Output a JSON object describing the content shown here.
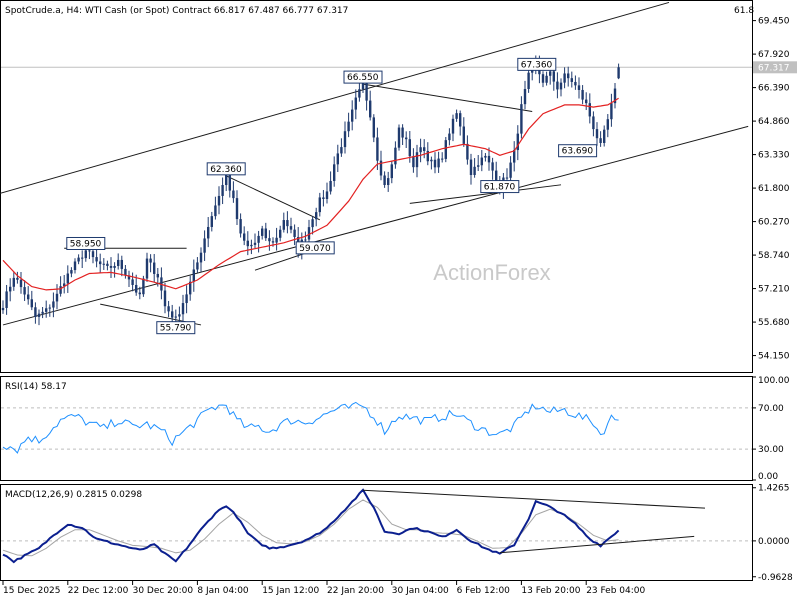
{
  "header": {
    "symbol": "SpotCrude.a, H4:  WTI Cash (or Spot) Contract  66.817 67.487 66.777 67.317",
    "right_value": "61.8"
  },
  "watermark": "ActionForex",
  "colors": {
    "candle": "#1f3a6e",
    "ma": "#e32222",
    "rsi": "#1e90ff",
    "macd_line": "#0b1f8f",
    "macd_signal": "#a5a5a5",
    "trendline": "#1a1a1a",
    "price_label_bg": "#c0c0c0"
  },
  "chart_data": [
    {
      "type": "candlestick",
      "name": "price",
      "symbol": "SpotCrude.a",
      "timeframe": "H4",
      "title": "WTI Cash (or Spot) Contract",
      "ohlc_current": {
        "open": 66.817,
        "high": 67.487,
        "low": 66.777,
        "close": 67.317
      },
      "ylim": [
        53.4,
        70.3
      ],
      "y_ticks": [
        "69.450",
        "67.920",
        "66.390",
        "64.860",
        "63.330",
        "61.800",
        "60.270",
        "58.740",
        "57.210",
        "55.680",
        "54.150"
      ],
      "last_price": "67.317",
      "x_ticks": [
        "15 Dec 2025",
        "22 Dec 12:00",
        "30 Dec 20:00",
        "8 Jan 04:00",
        "15 Jan 12:00",
        "22 Jan 20:00",
        "30 Jan 04:00",
        "6 Feb 12:00",
        "13 Feb 20:00",
        "23 Feb 04:00"
      ],
      "anchors": [
        [
          0,
          56.5
        ],
        [
          3,
          57.8
        ],
        [
          6,
          57.0
        ],
        [
          9,
          55.9
        ],
        [
          12,
          56.2
        ],
        [
          15,
          56.9
        ],
        [
          17,
          57.6
        ],
        [
          20,
          58.3
        ],
        [
          23,
          58.95
        ],
        [
          26,
          58.4
        ],
        [
          29,
          58.1
        ],
        [
          32,
          58.4
        ],
        [
          35,
          57.7
        ],
        [
          38,
          56.8
        ],
        [
          40,
          58.5
        ],
        [
          43,
          57.8
        ],
        [
          45,
          56.4
        ],
        [
          48,
          55.79
        ],
        [
          51,
          57.0
        ],
        [
          54,
          58.4
        ],
        [
          57,
          60.1
        ],
        [
          60,
          61.5
        ],
        [
          62,
          62.36
        ],
        [
          64,
          61.2
        ],
        [
          66,
          59.6
        ],
        [
          68,
          59.1
        ],
        [
          70,
          59.3
        ],
        [
          72,
          59.8
        ],
        [
          74,
          59.3
        ],
        [
          76,
          59.5
        ],
        [
          78,
          60.4
        ],
        [
          80,
          59.8
        ],
        [
          82,
          59.07
        ],
        [
          84,
          59.6
        ],
        [
          86,
          60.5
        ],
        [
          88,
          61.2
        ],
        [
          90,
          61.6
        ],
        [
          92,
          62.9
        ],
        [
          94,
          63.8
        ],
        [
          96,
          64.7
        ],
        [
          98,
          65.8
        ],
        [
          100,
          66.55
        ],
        [
          102,
          65.2
        ],
        [
          104,
          63.2
        ],
        [
          106,
          61.9
        ],
        [
          108,
          62.8
        ],
        [
          110,
          64.5
        ],
        [
          112,
          63.9
        ],
        [
          114,
          62.8
        ],
        [
          116,
          63.8
        ],
        [
          118,
          63.2
        ],
        [
          120,
          62.7
        ],
        [
          122,
          63.3
        ],
        [
          124,
          64.4
        ],
        [
          126,
          65.2
        ],
        [
          128,
          63.9
        ],
        [
          130,
          62.5
        ],
        [
          132,
          63.0
        ],
        [
          134,
          63.2
        ],
        [
          136,
          62.6
        ],
        [
          138,
          61.87
        ],
        [
          140,
          62.4
        ],
        [
          142,
          63.4
        ],
        [
          144,
          65.5
        ],
        [
          146,
          66.9
        ],
        [
          148,
          67.36
        ],
        [
          150,
          66.7
        ],
        [
          152,
          67.0
        ],
        [
          154,
          66.4
        ],
        [
          156,
          66.9
        ],
        [
          158,
          66.7
        ],
        [
          160,
          66.2
        ],
        [
          162,
          65.6
        ],
        [
          164,
          64.6
        ],
        [
          166,
          63.69
        ],
        [
          168,
          64.9
        ],
        [
          170,
          66.2
        ],
        [
          171,
          67.317
        ]
      ],
      "ma_anchors": [
        [
          0,
          58.5
        ],
        [
          4,
          57.8
        ],
        [
          8,
          57.3
        ],
        [
          12,
          57.15
        ],
        [
          16,
          57.2
        ],
        [
          20,
          57.6
        ],
        [
          24,
          57.9
        ],
        [
          30,
          57.95
        ],
        [
          36,
          57.75
        ],
        [
          42,
          57.5
        ],
        [
          48,
          57.2
        ],
        [
          54,
          57.6
        ],
        [
          60,
          58.3
        ],
        [
          66,
          58.9
        ],
        [
          72,
          59.1
        ],
        [
          78,
          59.3
        ],
        [
          84,
          59.6
        ],
        [
          90,
          60.1
        ],
        [
          96,
          61.2
        ],
        [
          100,
          62.2
        ],
        [
          104,
          62.9
        ],
        [
          110,
          63.1
        ],
        [
          116,
          63.3
        ],
        [
          122,
          63.6
        ],
        [
          128,
          63.8
        ],
        [
          134,
          63.6
        ],
        [
          138,
          63.3
        ],
        [
          142,
          63.5
        ],
        [
          146,
          64.5
        ],
        [
          150,
          65.2
        ],
        [
          156,
          65.6
        ],
        [
          160,
          65.6
        ],
        [
          164,
          65.5
        ],
        [
          168,
          65.6
        ],
        [
          171,
          65.9
        ]
      ],
      "annotations": [
        {
          "label": "58.950",
          "price": 58.95,
          "bar": 23
        },
        {
          "label": "55.790",
          "price": 55.79,
          "bar": 48
        },
        {
          "label": "62.360",
          "price": 62.36,
          "bar": 62
        },
        {
          "label": "59.070",
          "price": 59.07,
          "bar": 82
        },
        {
          "label": "66.550",
          "price": 66.55,
          "bar": 100
        },
        {
          "label": "61.870",
          "price": 61.87,
          "bar": 138
        },
        {
          "label": "67.360",
          "price": 67.36,
          "bar": 148
        },
        {
          "label": "63.690",
          "price": 63.69,
          "bar": 166
        }
      ]
    },
    {
      "type": "line",
      "name": "RSI(14)",
      "header": "RSI(14) 58.17",
      "ylim": [
        0,
        100
      ],
      "levels": [
        70,
        30
      ],
      "y_ticks": [
        "100.00",
        "70.00",
        "30.00",
        "0.00"
      ],
      "anchors": [
        [
          0,
          35
        ],
        [
          4,
          30
        ],
        [
          7,
          42
        ],
        [
          10,
          38
        ],
        [
          13,
          48
        ],
        [
          16,
          58
        ],
        [
          20,
          62
        ],
        [
          24,
          55
        ],
        [
          28,
          50
        ],
        [
          32,
          58
        ],
        [
          36,
          52
        ],
        [
          40,
          54
        ],
        [
          44,
          48
        ],
        [
          47,
          38
        ],
        [
          50,
          46
        ],
        [
          54,
          58
        ],
        [
          58,
          70
        ],
        [
          62,
          73
        ],
        [
          65,
          58
        ],
        [
          68,
          50
        ],
        [
          71,
          52
        ],
        [
          74,
          47
        ],
        [
          77,
          54
        ],
        [
          80,
          58
        ],
        [
          84,
          56
        ],
        [
          88,
          61
        ],
        [
          92,
          68
        ],
        [
          96,
          70
        ],
        [
          100,
          72
        ],
        [
          103,
          62
        ],
        [
          106,
          48
        ],
        [
          110,
          63
        ],
        [
          114,
          60
        ],
        [
          118,
          57
        ],
        [
          122,
          62
        ],
        [
          126,
          64
        ],
        [
          130,
          55
        ],
        [
          134,
          48
        ],
        [
          138,
          44
        ],
        [
          142,
          52
        ],
        [
          146,
          68
        ],
        [
          148,
          72
        ],
        [
          152,
          66
        ],
        [
          156,
          68
        ],
        [
          160,
          62
        ],
        [
          164,
          56
        ],
        [
          166,
          44
        ],
        [
          169,
          60
        ],
        [
          171,
          58.17
        ]
      ]
    },
    {
      "type": "line",
      "name": "MACD(12,26,9)",
      "header": "MACD(12,26,9) 0.2815 0.0298",
      "ylim": [
        -1.05,
        1.5
      ],
      "y_ticks": [
        "1.4265",
        "0.0000",
        "-0.9628"
      ],
      "macd_anchors": [
        [
          0,
          -0.35
        ],
        [
          3,
          -0.55
        ],
        [
          6,
          -0.4
        ],
        [
          10,
          -0.2
        ],
        [
          14,
          0.15
        ],
        [
          18,
          0.45
        ],
        [
          22,
          0.35
        ],
        [
          26,
          0.05
        ],
        [
          30,
          -0.05
        ],
        [
          34,
          -0.15
        ],
        [
          38,
          -0.25
        ],
        [
          42,
          -0.1
        ],
        [
          45,
          -0.35
        ],
        [
          48,
          -0.55
        ],
        [
          51,
          -0.2
        ],
        [
          55,
          0.3
        ],
        [
          59,
          0.75
        ],
        [
          62,
          0.95
        ],
        [
          65,
          0.65
        ],
        [
          68,
          0.2
        ],
        [
          71,
          -0.05
        ],
        [
          74,
          -0.2
        ],
        [
          78,
          -0.15
        ],
        [
          82,
          -0.05
        ],
        [
          86,
          0.1
        ],
        [
          90,
          0.35
        ],
        [
          94,
          0.75
        ],
        [
          98,
          1.15
        ],
        [
          100,
          1.35
        ],
        [
          103,
          0.9
        ],
        [
          106,
          0.25
        ],
        [
          110,
          0.2
        ],
        [
          114,
          0.35
        ],
        [
          118,
          0.25
        ],
        [
          122,
          0.1
        ],
        [
          126,
          0.3
        ],
        [
          130,
          0.0
        ],
        [
          134,
          -0.2
        ],
        [
          138,
          -0.35
        ],
        [
          142,
          -0.1
        ],
        [
          146,
          0.6
        ],
        [
          148,
          1.05
        ],
        [
          151,
          0.95
        ],
        [
          155,
          0.75
        ],
        [
          159,
          0.45
        ],
        [
          163,
          0.05
        ],
        [
          166,
          -0.12
        ],
        [
          169,
          0.12
        ],
        [
          171,
          0.2815
        ]
      ],
      "signal_anchors": [
        [
          0,
          -0.25
        ],
        [
          4,
          -0.38
        ],
        [
          8,
          -0.4
        ],
        [
          12,
          -0.2
        ],
        [
          16,
          0.1
        ],
        [
          20,
          0.3
        ],
        [
          24,
          0.3
        ],
        [
          28,
          0.15
        ],
        [
          32,
          0.0
        ],
        [
          36,
          -0.12
        ],
        [
          40,
          -0.15
        ],
        [
          44,
          -0.2
        ],
        [
          48,
          -0.32
        ],
        [
          52,
          -0.25
        ],
        [
          56,
          0.05
        ],
        [
          60,
          0.45
        ],
        [
          64,
          0.75
        ],
        [
          68,
          0.5
        ],
        [
          72,
          0.15
        ],
        [
          76,
          -0.05
        ],
        [
          80,
          -0.08
        ],
        [
          84,
          -0.02
        ],
        [
          88,
          0.15
        ],
        [
          92,
          0.45
        ],
        [
          96,
          0.85
        ],
        [
          100,
          1.1
        ],
        [
          104,
          0.9
        ],
        [
          108,
          0.45
        ],
        [
          112,
          0.3
        ],
        [
          116,
          0.3
        ],
        [
          120,
          0.22
        ],
        [
          124,
          0.2
        ],
        [
          128,
          0.15
        ],
        [
          132,
          -0.02
        ],
        [
          136,
          -0.2
        ],
        [
          140,
          -0.18
        ],
        [
          144,
          0.2
        ],
        [
          148,
          0.7
        ],
        [
          152,
          0.85
        ],
        [
          156,
          0.7
        ],
        [
          160,
          0.45
        ],
        [
          164,
          0.15
        ],
        [
          168,
          0.0
        ],
        [
          171,
          0.0298
        ]
      ]
    }
  ]
}
